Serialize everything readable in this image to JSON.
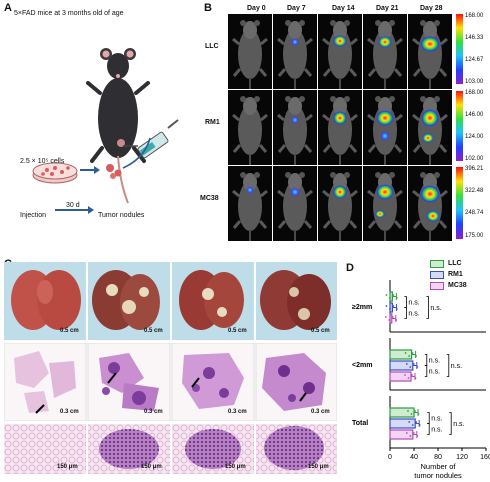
{
  "panel_a": {
    "label": "A",
    "title": "5×FAD mice at 3 months old of age",
    "cells": "2.5 × 10⁵ cells",
    "days": "30 d",
    "injection": "Injection",
    "outcome": "Tumor nodules"
  },
  "panel_b": {
    "label": "B",
    "days": [
      "Day 0",
      "Day 7",
      "Day 14",
      "Day 21",
      "Day 28"
    ],
    "rows": [
      {
        "name": "LLC",
        "scale": [
          "168.00",
          "146.33",
          "124.67",
          "103.00"
        ]
      },
      {
        "name": "RM1",
        "scale": [
          "168.00",
          "146.00",
          "124.00",
          "102.00"
        ]
      },
      {
        "name": "MC38",
        "scale": [
          "396.21",
          "322.48",
          "248.74",
          "175.00"
        ]
      }
    ]
  },
  "panel_c": {
    "label": "C",
    "gross_scale": "0.5 cm",
    "section_scale": "0.3 cm",
    "micro_scale": "150 μm"
  },
  "panel_d": {
    "label": "D",
    "xlabel": "Number of tumor nodules",
    "ns": "n.s.",
    "legend": [
      "LLC",
      "RM1",
      "MC38"
    ]
  },
  "chart_data": {
    "type": "bar",
    "orientation": "horizontal",
    "categories": [
      "≥2mm",
      "<2mm",
      "Total"
    ],
    "series": [
      {
        "name": "LLC",
        "color": "#2e9d45",
        "values": [
          4,
          36,
          40
        ]
      },
      {
        "name": "RM1",
        "color": "#3a4fc8",
        "values": [
          4,
          38,
          42
        ]
      },
      {
        "name": "MC38",
        "color": "#b24ab8",
        "values": [
          3,
          35,
          38
        ]
      }
    ],
    "xlim": [
      0,
      160
    ],
    "xticks": [
      "0",
      "40",
      "80",
      "120",
      "160"
    ],
    "xlabel": "Number of tumor nodules",
    "legend_position": "top-right"
  }
}
